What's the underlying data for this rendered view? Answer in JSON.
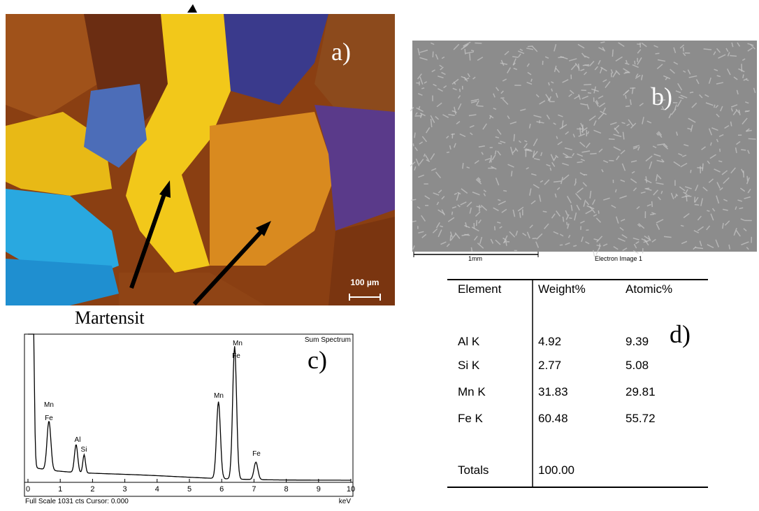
{
  "panel_a": {
    "label": "a)",
    "scale_bar": "100 µm",
    "annotation": "Martensit"
  },
  "panel_b": {
    "label": "b)",
    "scale_label": "1mm",
    "caption": "Electron Image 1"
  },
  "panel_c": {
    "label": "c)",
    "title": "Sum Spectrum",
    "footer": "Full Scale 1031 cts Cursor: 0.000",
    "x_unit": "keV",
    "xticks": [
      "0",
      "1",
      "2",
      "3",
      "4",
      "5",
      "6",
      "7",
      "8",
      "9",
      "10"
    ],
    "peak_labels": [
      "Mn",
      "Fe",
      "Al",
      "Si",
      "Mn",
      "Mn",
      "Fe",
      "Fe"
    ]
  },
  "table": {
    "label": "d)",
    "header": [
      "Element",
      "Weight%",
      "Atomic%"
    ],
    "rows": [
      [
        "Al K",
        "4.92",
        "9.39"
      ],
      [
        "Si K",
        "2.77",
        "5.08"
      ],
      [
        "Mn K",
        "31.83",
        "29.81"
      ],
      [
        "Fe K",
        "60.48",
        "55.72"
      ]
    ],
    "totals": [
      "Totals",
      "100.00"
    ]
  }
}
